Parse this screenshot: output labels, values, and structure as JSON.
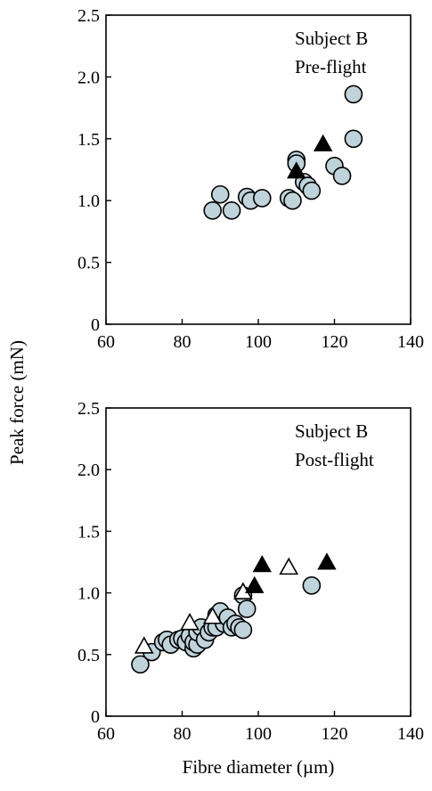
{
  "ylabel": "Peak force (mN)",
  "xlabel": "Fibre diameter (µm)",
  "chart_data": [
    {
      "type": "scatter",
      "annotation": [
        "Subject B",
        "Pre-flight"
      ],
      "xlim": [
        60,
        140
      ],
      "ylim": [
        0,
        2.5
      ],
      "xticks": [
        "60",
        "80",
        "100",
        "120",
        "140"
      ],
      "yticks": [
        "0",
        "0.5",
        "1.0",
        "1.5",
        "2.0",
        "2.5"
      ],
      "grid": false,
      "series": [
        {
          "marker": "circle",
          "points": [
            [
              88,
              0.92
            ],
            [
              90,
              1.05
            ],
            [
              93,
              0.92
            ],
            [
              97,
              1.03
            ],
            [
              98,
              1.0
            ],
            [
              101,
              1.02
            ],
            [
              108,
              1.02
            ],
            [
              109,
              1.0
            ],
            [
              110,
              1.33
            ],
            [
              110,
              1.3
            ],
            [
              112,
              1.15
            ],
            [
              113,
              1.12
            ],
            [
              114,
              1.08
            ],
            [
              120,
              1.28
            ],
            [
              122,
              1.2
            ],
            [
              125,
              1.86
            ],
            [
              125,
              1.5
            ]
          ]
        },
        {
          "marker": "filled-triangle",
          "points": [
            [
              110,
              1.23
            ],
            [
              117,
              1.45
            ]
          ]
        }
      ]
    },
    {
      "type": "scatter",
      "annotation": [
        "Subject B",
        "Post-flight"
      ],
      "xlim": [
        60,
        140
      ],
      "ylim": [
        0,
        2.5
      ],
      "xticks": [
        "60",
        "80",
        "100",
        "120",
        "140"
      ],
      "yticks": [
        "0",
        "0.5",
        "1.0",
        "1.5",
        "2.0",
        "2.5"
      ],
      "grid": false,
      "series": [
        {
          "marker": "circle",
          "points": [
            [
              69,
              0.42
            ],
            [
              72,
              0.52
            ],
            [
              75,
              0.6
            ],
            [
              76,
              0.62
            ],
            [
              77,
              0.58
            ],
            [
              79,
              0.62
            ],
            [
              80,
              0.63
            ],
            [
              81,
              0.6
            ],
            [
              82,
              0.65
            ],
            [
              83,
              0.55
            ],
            [
              83,
              0.6
            ],
            [
              84,
              0.58
            ],
            [
              84,
              0.68
            ],
            [
              85,
              0.72
            ],
            [
              86,
              0.62
            ],
            [
              87,
              0.68
            ],
            [
              88,
              0.72
            ],
            [
              89,
              0.72
            ],
            [
              89,
              0.82
            ],
            [
              90,
              0.85
            ],
            [
              91,
              0.75
            ],
            [
              92,
              0.8
            ],
            [
              93,
              0.72
            ],
            [
              94,
              0.75
            ],
            [
              95,
              0.72
            ],
            [
              96,
              0.7
            ],
            [
              96,
              0.98
            ],
            [
              97,
              0.87
            ],
            [
              114,
              1.06
            ]
          ]
        },
        {
          "marker": "open-triangle",
          "points": [
            [
              70,
              0.56
            ],
            [
              82,
              0.75
            ],
            [
              88,
              0.8
            ],
            [
              96,
              1.0
            ],
            [
              108,
              1.2
            ]
          ]
        },
        {
          "marker": "filled-triangle",
          "points": [
            [
              99,
              1.05
            ],
            [
              101,
              1.22
            ],
            [
              118,
              1.24
            ]
          ]
        }
      ]
    }
  ]
}
